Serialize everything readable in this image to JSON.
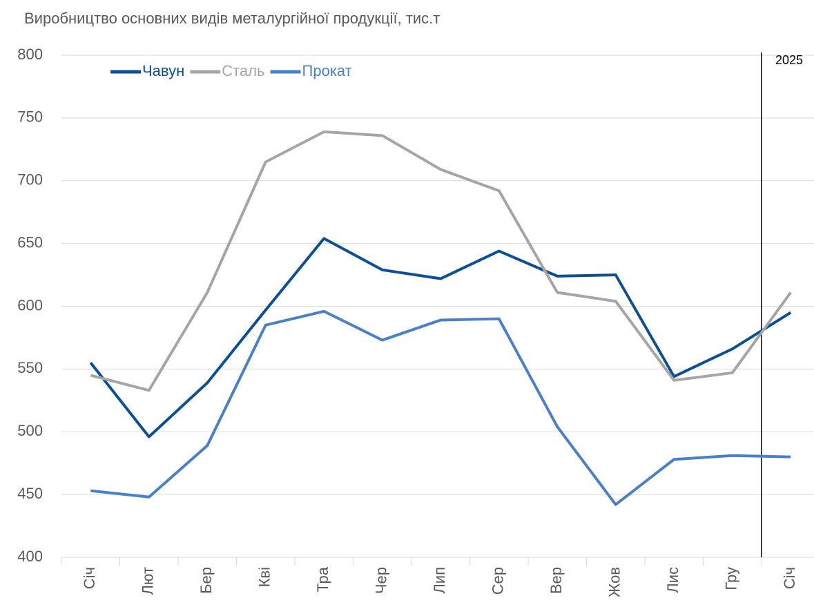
{
  "chart_data": {
    "type": "line",
    "title": "Виробництво основних видів металургійної продукції, тис.т",
    "categories": [
      "Січ",
      "Лют",
      "Бер",
      "Кві",
      "Тра",
      "Чер",
      "Лип",
      "Сер",
      "Вер",
      "Жов",
      "Лис",
      "Гру",
      "Січ"
    ],
    "series": [
      {
        "name": "Чавун",
        "color": "#0b4f96",
        "values": [
          555,
          496,
          539,
          597,
          654,
          629,
          622,
          644,
          624,
          625,
          544,
          566,
          595
        ]
      },
      {
        "name": "Сталь",
        "color": "#a5a5a5",
        "values": [
          545,
          533,
          611,
          715,
          739,
          736,
          709,
          692,
          611,
          604,
          541,
          547,
          611
        ]
      },
      {
        "name": "Прокат",
        "color": "#4a7fcb",
        "values": [
          453,
          448,
          489,
          585,
          596,
          573,
          589,
          590,
          504,
          442,
          478,
          481,
          480
        ]
      }
    ],
    "annotations": [
      {
        "text": "2025"
      }
    ],
    "ylim": [
      400,
      800
    ],
    "yticks": [
      400,
      450,
      500,
      550,
      600,
      650,
      700,
      750,
      800
    ],
    "grid": true,
    "legend": "top-left"
  }
}
